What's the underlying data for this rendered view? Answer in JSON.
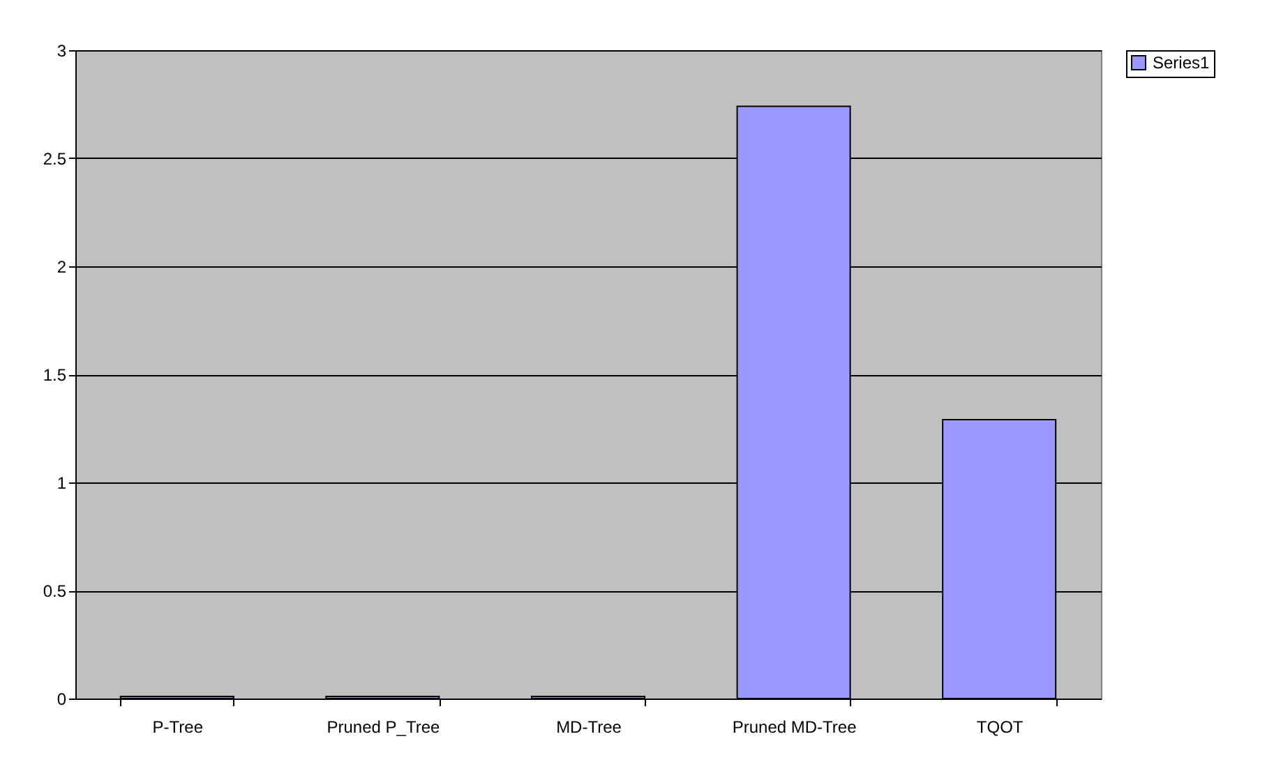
{
  "chart_data": {
    "type": "bar",
    "categories": [
      "P-Tree",
      "Pruned P_Tree",
      "MD-Tree",
      "Pruned MD-Tree",
      "TQOT"
    ],
    "series": [
      {
        "name": "Series1",
        "color": "#9999ff",
        "values": [
          0.01,
          0.01,
          0.01,
          2.74,
          1.29
        ]
      }
    ],
    "ylim": [
      0,
      3
    ],
    "yticks": [
      0,
      0.5,
      1,
      1.5,
      2,
      2.5,
      3
    ],
    "grid": "y",
    "legend": "right"
  }
}
